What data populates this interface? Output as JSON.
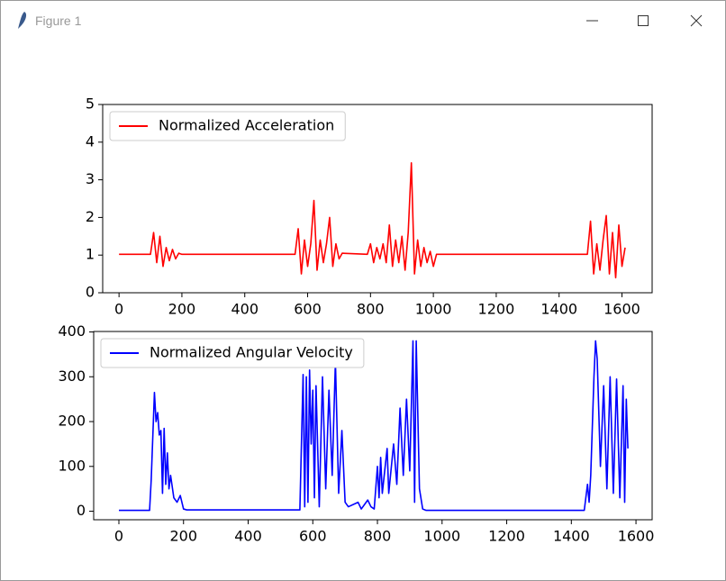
{
  "window": {
    "title": "Figure 1"
  },
  "chart_data": [
    {
      "type": "line",
      "x": [
        0,
        100,
        110,
        120,
        130,
        140,
        150,
        160,
        170,
        180,
        190,
        200,
        560,
        570,
        580,
        590,
        600,
        610,
        620,
        630,
        640,
        650,
        660,
        670,
        680,
        690,
        700,
        710,
        790,
        800,
        810,
        820,
        830,
        840,
        850,
        860,
        870,
        880,
        890,
        900,
        910,
        920,
        930,
        940,
        950,
        960,
        970,
        980,
        990,
        1000,
        1010,
        1490,
        1500,
        1510,
        1520,
        1530,
        1540,
        1550,
        1560,
        1570,
        1580,
        1590,
        1600,
        1610
      ],
      "series": [
        {
          "name": "Normalized Acceleration",
          "color": "#ff0000",
          "values": [
            1.02,
            1.02,
            1.6,
            0.8,
            1.5,
            0.7,
            1.2,
            0.85,
            1.15,
            0.9,
            1.05,
            1.02,
            1.02,
            1.7,
            0.5,
            1.4,
            0.7,
            1.3,
            2.45,
            0.6,
            1.4,
            0.8,
            1.3,
            2.0,
            0.7,
            1.3,
            0.9,
            1.05,
            1.02,
            1.3,
            0.8,
            1.2,
            0.9,
            1.3,
            0.8,
            1.8,
            0.7,
            1.4,
            0.8,
            1.5,
            0.6,
            1.6,
            3.45,
            0.5,
            1.4,
            0.7,
            1.2,
            0.8,
            1.1,
            0.7,
            1.02,
            1.02,
            1.9,
            0.5,
            1.3,
            0.6,
            1.4,
            2.05,
            0.5,
            1.6,
            0.4,
            1.8,
            0.7,
            1.2
          ]
        }
      ],
      "xlim": [
        -52,
        1696
      ],
      "ylim": [
        0,
        5
      ],
      "xticks": [
        0,
        200,
        400,
        600,
        800,
        1000,
        1200,
        1400,
        1600
      ],
      "yticks": [
        0,
        1,
        2,
        3,
        4,
        5
      ],
      "legend": "upper left"
    },
    {
      "type": "line",
      "x": [
        0,
        95,
        100,
        110,
        115,
        120,
        125,
        130,
        135,
        140,
        145,
        150,
        155,
        160,
        170,
        180,
        190,
        200,
        210,
        560,
        570,
        575,
        580,
        585,
        590,
        595,
        600,
        605,
        610,
        620,
        630,
        640,
        650,
        660,
        670,
        680,
        690,
        700,
        710,
        740,
        750,
        770,
        780,
        790,
        800,
        805,
        810,
        815,
        830,
        835,
        850,
        860,
        870,
        880,
        890,
        900,
        910,
        915,
        920,
        930,
        940,
        950,
        1440,
        1450,
        1455,
        1460,
        1470,
        1475,
        1480,
        1490,
        1500,
        1510,
        1520,
        1530,
        1540,
        1550,
        1560,
        1565,
        1570,
        1575
      ],
      "series": [
        {
          "name": "Normalized Angular Velocity",
          "color": "#0000ff",
          "values": [
            2,
            2,
            70,
            265,
            200,
            220,
            170,
            180,
            40,
            185,
            60,
            130,
            50,
            80,
            30,
            20,
            35,
            5,
            3,
            3,
            305,
            10,
            300,
            20,
            315,
            150,
            270,
            30,
            280,
            10,
            300,
            50,
            270,
            80,
            335,
            40,
            180,
            20,
            10,
            20,
            5,
            25,
            10,
            5,
            100,
            30,
            120,
            40,
            140,
            40,
            150,
            60,
            230,
            80,
            250,
            90,
            380,
            20,
            380,
            50,
            5,
            2,
            2,
            60,
            20,
            80,
            300,
            380,
            340,
            100,
            280,
            50,
            300,
            40,
            295,
            30,
            280,
            20,
            250,
            140
          ]
        }
      ],
      "xlim": [
        -78,
        1650
      ],
      "ylim": [
        -19,
        401
      ],
      "xticks": [
        0,
        200,
        400,
        600,
        800,
        1000,
        1200,
        1400,
        1600
      ],
      "yticks": [
        0,
        100,
        200,
        300,
        400
      ],
      "legend": "upper left"
    }
  ]
}
